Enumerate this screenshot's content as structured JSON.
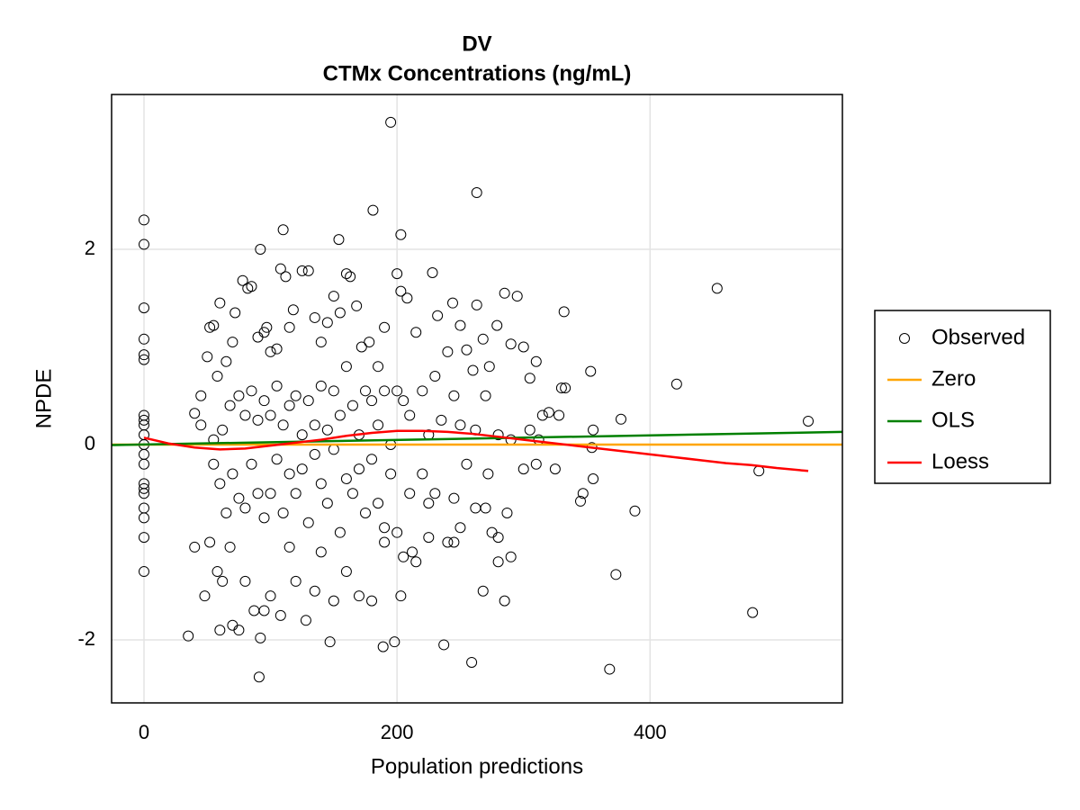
{
  "chart_data": {
    "type": "scatter",
    "title": "DV",
    "subtitle": "CTMx Concentrations (ng/mL)",
    "xlabel": "Population predictions",
    "ylabel": "NPDE",
    "xlim": [
      -25.6,
      552
    ],
    "ylim": [
      -2.645,
      3.585
    ],
    "xticks": [
      0,
      200,
      400
    ],
    "yticks": [
      -2,
      0,
      2
    ],
    "grid": true,
    "legend": "right",
    "series": [
      {
        "name": "Observed",
        "style": "circle",
        "color": "#000000",
        "x": [
          0,
          0,
          0,
          0,
          0,
          0,
          0,
          0,
          0,
          0,
          0,
          0,
          0,
          0,
          0,
          0,
          0,
          0,
          0,
          0,
          195,
          263,
          181,
          203,
          154,
          110,
          92,
          453,
          421,
          377,
          525,
          486,
          481,
          368,
          373,
          388,
          353,
          354,
          355,
          355,
          332,
          330,
          333,
          345,
          347,
          259,
          237,
          198,
          189,
          147,
          91,
          35,
          92,
          60,
          70,
          45,
          50,
          52,
          55,
          58,
          60,
          65,
          70,
          72,
          78,
          82,
          85,
          90,
          95,
          97,
          100,
          105,
          108,
          112,
          115,
          118,
          125,
          130,
          135,
          140,
          145,
          150,
          155,
          160,
          163,
          168,
          172,
          178,
          185,
          190,
          200,
          203,
          208,
          215,
          228,
          232,
          240,
          244,
          250,
          255,
          260,
          263,
          268,
          273,
          279,
          285,
          290,
          295,
          300,
          305,
          310,
          315,
          320,
          55,
          60,
          65,
          70,
          75,
          80,
          85,
          90,
          95,
          100,
          105,
          110,
          115,
          120,
          125,
          130,
          135,
          140,
          145,
          150,
          155,
          160,
          165,
          170,
          175,
          180,
          185,
          190,
          195,
          200,
          205,
          210,
          215,
          220,
          225,
          230,
          240,
          245,
          250,
          255,
          262,
          270,
          272,
          280,
          287,
          290,
          300,
          310,
          325,
          40,
          48,
          52,
          58,
          62,
          68,
          75,
          80,
          87,
          95,
          100,
          108,
          115,
          120,
          128,
          135,
          140,
          150,
          160,
          170,
          180,
          190,
          203,
          212,
          225,
          245,
          268,
          275,
          285,
          280,
          40,
          45,
          55,
          62,
          68,
          75,
          80,
          85,
          90,
          95,
          100,
          105,
          110,
          115,
          120,
          125,
          130,
          135,
          140,
          145,
          150,
          155,
          160,
          165,
          170,
          175,
          180,
          185,
          190,
          195,
          200,
          205,
          210,
          220,
          225,
          230,
          235,
          245,
          250,
          262,
          270,
          280,
          290,
          305,
          312,
          328
        ],
        "values": [
          2.3,
          2.05,
          1.4,
          1.08,
          0.92,
          0.87,
          0.3,
          0.25,
          0.2,
          0.1,
          0.0,
          -0.1,
          -0.2,
          -0.4,
          -0.45,
          -0.5,
          -0.65,
          -0.75,
          -0.95,
          -1.3,
          3.3,
          2.58,
          2.4,
          2.15,
          2.1,
          2.2,
          2.0,
          1.6,
          0.62,
          0.26,
          0.24,
          -0.27,
          -1.72,
          -2.3,
          -1.33,
          -0.68,
          0.75,
          -0.03,
          0.15,
          -0.35,
          1.36,
          0.58,
          0.58,
          -0.58,
          -0.5,
          -2.23,
          -2.05,
          -2.02,
          -2.07,
          -2.02,
          -2.38,
          -1.96,
          -1.98,
          -1.9,
          -1.85,
          0.5,
          0.9,
          1.2,
          1.22,
          0.7,
          1.45,
          0.85,
          1.05,
          1.35,
          1.68,
          1.6,
          1.62,
          1.1,
          1.15,
          1.2,
          0.95,
          0.98,
          1.8,
          1.72,
          1.2,
          1.38,
          1.78,
          1.78,
          1.3,
          1.05,
          1.25,
          1.52,
          1.35,
          1.75,
          1.72,
          1.42,
          1.0,
          1.05,
          0.8,
          1.2,
          1.75,
          1.57,
          1.5,
          1.15,
          1.76,
          1.32,
          0.95,
          1.45,
          1.22,
          0.97,
          0.76,
          1.43,
          1.08,
          0.8,
          1.22,
          1.55,
          1.03,
          1.52,
          1.0,
          0.68,
          0.85,
          0.3,
          0.33,
          -0.2,
          -0.4,
          -0.7,
          -0.3,
          -0.55,
          -0.65,
          -0.2,
          -0.5,
          -0.75,
          -0.5,
          -0.15,
          -0.7,
          -0.3,
          -0.5,
          -0.25,
          -0.8,
          -0.1,
          -0.4,
          -0.6,
          -0.05,
          -0.9,
          -0.35,
          -0.5,
          -0.25,
          -0.7,
          -0.15,
          -0.6,
          -0.85,
          -0.3,
          -0.9,
          -1.15,
          -0.5,
          -1.2,
          -0.3,
          -0.6,
          -0.5,
          -1.0,
          -0.55,
          -0.85,
          -0.2,
          -0.65,
          -0.65,
          -0.3,
          -0.95,
          -0.7,
          -1.15,
          -0.25,
          -0.2,
          -0.25,
          -1.05,
          -1.55,
          -1.0,
          -1.3,
          -1.4,
          -1.05,
          -1.9,
          -1.4,
          -1.7,
          -1.7,
          -1.55,
          -1.75,
          -1.05,
          -1.4,
          -1.8,
          -1.5,
          -1.1,
          -1.6,
          -1.3,
          -1.55,
          -1.6,
          -1.0,
          -1.55,
          -1.1,
          -0.95,
          -1.0,
          -1.5,
          -0.9,
          -1.6,
          -1.2,
          0.32,
          0.2,
          0.05,
          0.15,
          0.4,
          0.5,
          0.3,
          0.55,
          0.25,
          0.45,
          0.3,
          0.6,
          0.2,
          0.4,
          0.5,
          0.1,
          0.45,
          0.2,
          0.6,
          0.15,
          0.55,
          0.3,
          0.8,
          0.4,
          0.1,
          0.55,
          0.45,
          0.2,
          0.55,
          0.0,
          0.55,
          0.45,
          0.3,
          0.55,
          0.1,
          0.7,
          0.25,
          0.5,
          0.2,
          0.15,
          0.5,
          0.1,
          0.05,
          0.15,
          0.05,
          0.3
        ]
      },
      {
        "name": "Zero",
        "style": "line",
        "color": "#ffa500",
        "x": [
          -25.6,
          552
        ],
        "values": [
          0,
          0
        ]
      },
      {
        "name": "OLS",
        "style": "line",
        "color": "#008000",
        "x": [
          -25.6,
          552
        ],
        "values": [
          -0.005,
          0.13
        ]
      },
      {
        "name": "Loess",
        "style": "line",
        "color": "#ff0000",
        "x": [
          0,
          20,
          40,
          60,
          80,
          100,
          120,
          140,
          160,
          180,
          200,
          220,
          240,
          260,
          280,
          300,
          320,
          340,
          360,
          380,
          400,
          420,
          440,
          460,
          480,
          500,
          525
        ],
        "values": [
          0.07,
          0.01,
          -0.03,
          -0.05,
          -0.04,
          -0.01,
          0.02,
          0.05,
          0.09,
          0.12,
          0.14,
          0.14,
          0.13,
          0.11,
          0.08,
          0.05,
          0.02,
          -0.01,
          -0.04,
          -0.07,
          -0.1,
          -0.13,
          -0.16,
          -0.19,
          -0.21,
          -0.24,
          -0.27
        ]
      }
    ]
  }
}
